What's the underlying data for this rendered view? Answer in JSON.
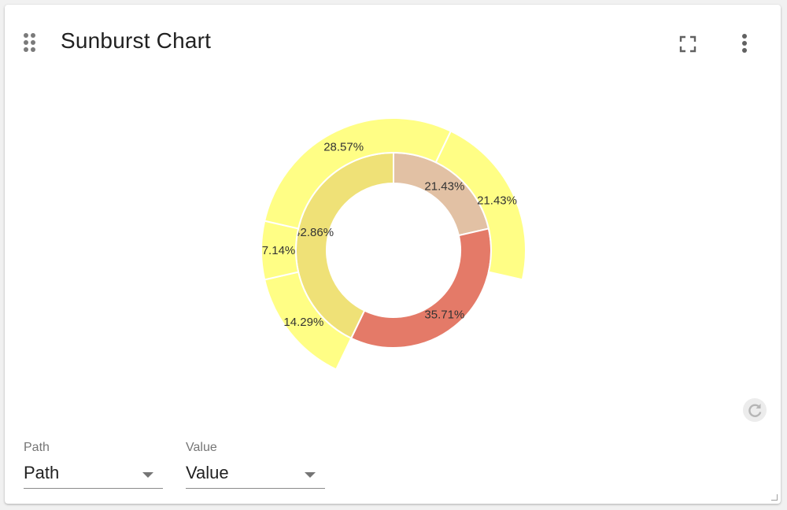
{
  "header": {
    "title": "Sunburst Chart",
    "drag_handle_icon": "drag-indicator-icon",
    "fullscreen_icon": "fullscreen-icon",
    "menu_icon": "more-vert-icon"
  },
  "chart_data": {
    "type": "sunburst",
    "title": "Sunburst Chart",
    "inner_ring": [
      {
        "label": "21.43%",
        "value": 21.43,
        "color": "#e2c1a4"
      },
      {
        "label": "35.71%",
        "value": 35.71,
        "color": "#e47a68"
      },
      {
        "label": "42.86%",
        "value": 42.86,
        "color": "#efe177"
      }
    ],
    "outer_ring": [
      {
        "label": "14.29%",
        "value": 14.29,
        "color": "#fffe85"
      },
      {
        "label": "7.14%",
        "value": 7.14,
        "color": "#fffe85"
      },
      {
        "label": "28.57%",
        "value": 28.57,
        "color": "#fffe85"
      },
      {
        "label": "21.43%",
        "value": 21.43,
        "color": "#fffe85"
      }
    ]
  },
  "controls": {
    "path": {
      "label": "Path",
      "value": "Path"
    },
    "value": {
      "label": "Value",
      "value": "Value"
    },
    "refresh_icon": "refresh-icon",
    "resize_icon": "resize-grip-icon"
  }
}
